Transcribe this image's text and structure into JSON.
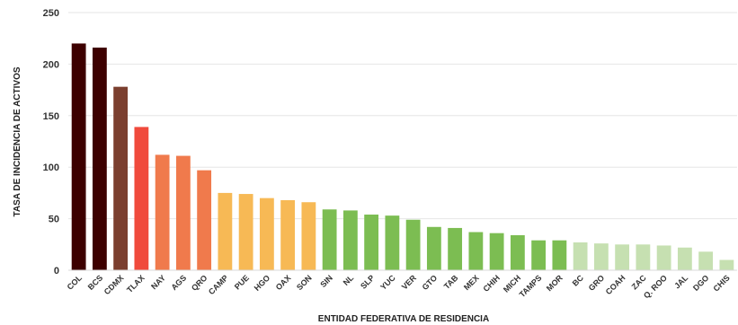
{
  "chart_data": {
    "type": "bar",
    "title": "",
    "xlabel": "ENTIDAD FEDERATIVA DE RESIDENCIA",
    "ylabel": "TASA DE INCIDENCIA DE ACTIVOS",
    "ylim": [
      0,
      250
    ],
    "yticks": [
      0,
      50,
      100,
      150,
      200,
      250
    ],
    "grid": true,
    "legend": "none",
    "categories": [
      "COL",
      "BCS",
      "CDMX",
      "TLAX",
      "NAY",
      "AGS",
      "QRO",
      "CAMP",
      "PUE",
      "HGO",
      "OAX",
      "SON",
      "SIN",
      "NL",
      "SLP",
      "YUC",
      "VER",
      "GTO",
      "TAB",
      "MEX",
      "CHIH",
      "MICH",
      "TAMPS",
      "MOR",
      "BC",
      "GRO",
      "COAH",
      "ZAC",
      "Q. ROO",
      "JAL",
      "DGO",
      "CHIS"
    ],
    "values": [
      220,
      216,
      178,
      139,
      112,
      111,
      97,
      75,
      74,
      70,
      68,
      66,
      59,
      58,
      54,
      53,
      49,
      42,
      41,
      37,
      36,
      34,
      29,
      29,
      27,
      26,
      25,
      25,
      24,
      22,
      18,
      10
    ],
    "colors": [
      "#3d0000",
      "#3d0000",
      "#7b3f2f",
      "#f04a3c",
      "#f07a4c",
      "#f07a4c",
      "#f07a4c",
      "#f7b955",
      "#f7b955",
      "#f7b955",
      "#f7b955",
      "#f7b955",
      "#7cbd52",
      "#7cbd52",
      "#7cbd52",
      "#7cbd52",
      "#7cbd52",
      "#7cbd52",
      "#7cbd52",
      "#7cbd52",
      "#7cbd52",
      "#7cbd52",
      "#7cbd52",
      "#7cbd52",
      "#c6e0b1",
      "#c6e0b1",
      "#c6e0b1",
      "#c6e0b1",
      "#c6e0b1",
      "#c6e0b1",
      "#c6e0b1",
      "#c6e0b1"
    ]
  }
}
